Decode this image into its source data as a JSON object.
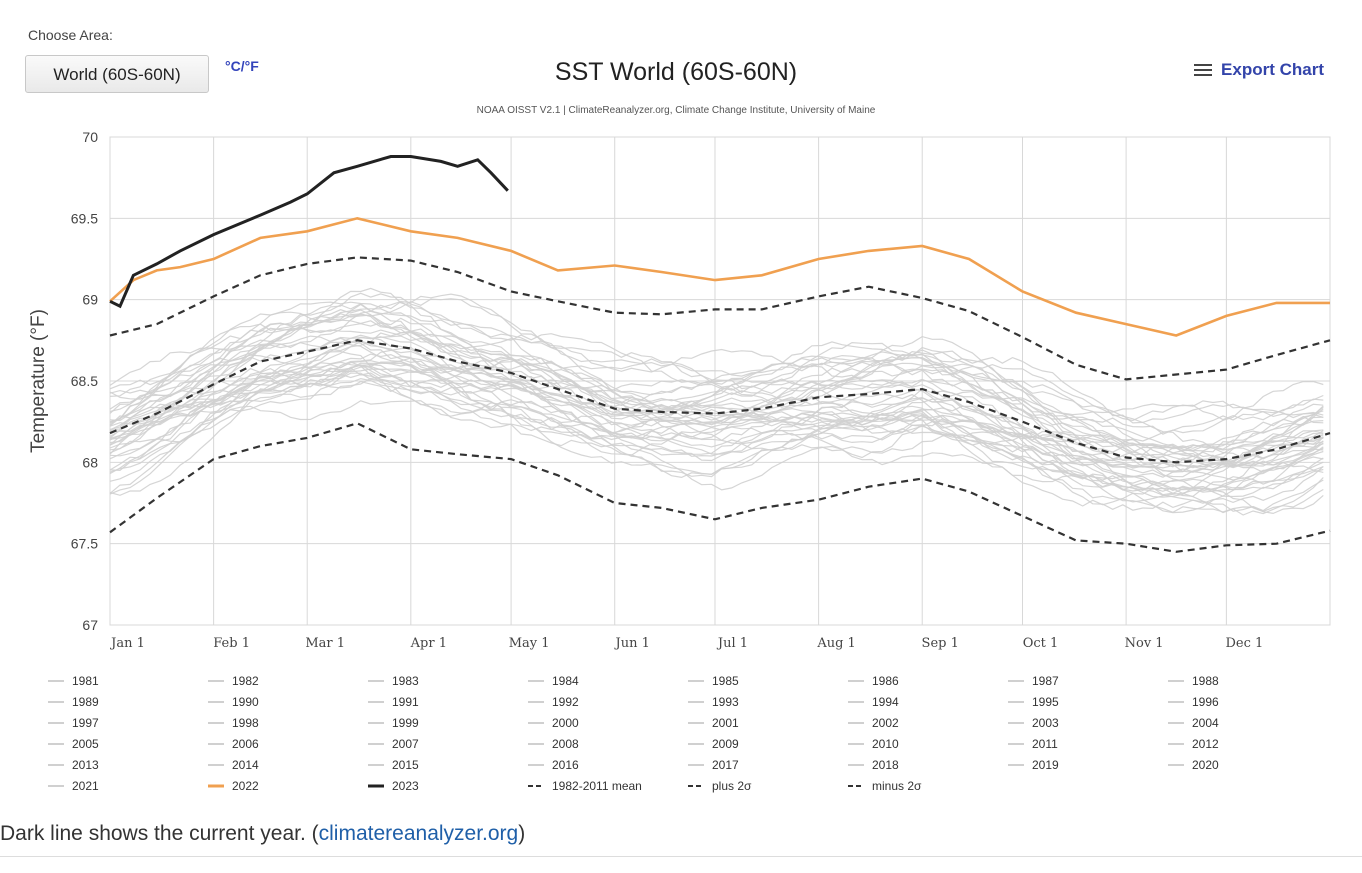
{
  "controls": {
    "choose_area_label": "Choose Area:",
    "area_selected": "World (60S-60N)",
    "unit_toggle": "°C/°F",
    "export_label": "Export Chart"
  },
  "caption": {
    "text_before": "Dark line shows the current year. (",
    "link_text": "climatereanalyzer.org",
    "text_after": ")"
  },
  "chart_data": {
    "type": "line",
    "title": "SST World (60S-60N)",
    "subtitle": "NOAA OISST V2.1 | ClimateReanalyzer.org, Climate Change Institute, University of Maine",
    "ylabel": "Temperature (°F)",
    "ylim": [
      67,
      70
    ],
    "yticks": [
      67,
      67.5,
      68,
      68.5,
      69,
      69.5,
      70
    ],
    "xlim": [
      1,
      366
    ],
    "xticks": [
      {
        "label": "Jan 1",
        "day": 1
      },
      {
        "label": "Feb 1",
        "day": 32
      },
      {
        "label": "Mar 1",
        "day": 60
      },
      {
        "label": "Apr 1",
        "day": 91
      },
      {
        "label": "May 1",
        "day": 121
      },
      {
        "label": "Jun 1",
        "day": 152
      },
      {
        "label": "Jul 1",
        "day": 182
      },
      {
        "label": "Aug 1",
        "day": 213
      },
      {
        "label": "Sep 1",
        "day": 244
      },
      {
        "label": "Oct 1",
        "day": 274
      },
      {
        "label": "Nov 1",
        "day": 305
      },
      {
        "label": "Dec 1",
        "day": 335
      }
    ],
    "grid": true,
    "legend_position": "bottom",
    "colors": {
      "past_years": "#d0d0d0",
      "y2022": "#f0a050",
      "y2023": "#222222",
      "stats": "#333333"
    },
    "background_years": [
      "1981",
      "1982",
      "1983",
      "1984",
      "1985",
      "1986",
      "1987",
      "1988",
      "1989",
      "1990",
      "1991",
      "1992",
      "1993",
      "1994",
      "1995",
      "1996",
      "1997",
      "1998",
      "1999",
      "2000",
      "2001",
      "2002",
      "2003",
      "2004",
      "2005",
      "2006",
      "2007",
      "2008",
      "2009",
      "2010",
      "2011",
      "2012",
      "2013",
      "2014",
      "2015",
      "2016",
      "2017",
      "2018",
      "2019",
      "2020",
      "2021"
    ],
    "highlight_series": [
      {
        "name": "1982-2011 mean",
        "style": "dashed",
        "x": [
          1,
          15,
          32,
          46,
          60,
          75,
          91,
          105,
          121,
          135,
          152,
          166,
          182,
          196,
          213,
          228,
          244,
          258,
          274,
          290,
          305,
          320,
          335,
          350,
          366
        ],
        "y": [
          68.18,
          68.3,
          68.48,
          68.62,
          68.68,
          68.75,
          68.7,
          68.62,
          68.55,
          68.45,
          68.33,
          68.31,
          68.3,
          68.33,
          68.4,
          68.42,
          68.45,
          68.37,
          68.25,
          68.12,
          68.03,
          68.0,
          68.02,
          68.08,
          68.18
        ]
      },
      {
        "name": "plus 2σ",
        "style": "dashed",
        "x": [
          1,
          15,
          32,
          46,
          60,
          75,
          91,
          105,
          121,
          135,
          152,
          166,
          182,
          196,
          213,
          228,
          244,
          258,
          274,
          290,
          305,
          320,
          335,
          350,
          366
        ],
        "y": [
          68.78,
          68.85,
          69.02,
          69.15,
          69.22,
          69.26,
          69.24,
          69.17,
          69.05,
          68.99,
          68.92,
          68.91,
          68.94,
          68.94,
          69.02,
          69.08,
          69.01,
          68.93,
          68.77,
          68.6,
          68.51,
          68.54,
          68.57,
          68.66,
          68.75
        ]
      },
      {
        "name": "minus 2σ",
        "style": "dashed",
        "x": [
          1,
          15,
          32,
          46,
          60,
          75,
          91,
          105,
          121,
          135,
          152,
          166,
          182,
          196,
          213,
          228,
          244,
          258,
          274,
          290,
          305,
          320,
          335,
          350,
          366
        ],
        "y": [
          67.57,
          67.78,
          68.02,
          68.1,
          68.15,
          68.24,
          68.08,
          68.05,
          68.02,
          67.92,
          67.75,
          67.72,
          67.65,
          67.72,
          67.77,
          67.85,
          67.9,
          67.82,
          67.67,
          67.52,
          67.5,
          67.45,
          67.49,
          67.5,
          67.58
        ]
      },
      {
        "name": "2022",
        "style": "orange",
        "x": [
          1,
          8,
          15,
          22,
          32,
          46,
          60,
          75,
          91,
          105,
          121,
          135,
          152,
          166,
          182,
          196,
          213,
          228,
          244,
          258,
          274,
          290,
          305,
          320,
          335,
          350,
          366
        ],
        "y": [
          68.99,
          69.12,
          69.18,
          69.2,
          69.25,
          69.38,
          69.42,
          69.5,
          69.42,
          69.38,
          69.3,
          69.18,
          69.21,
          69.17,
          69.12,
          69.15,
          69.25,
          69.3,
          69.33,
          69.25,
          69.05,
          68.92,
          68.85,
          68.78,
          68.9,
          68.98,
          68.98
        ]
      },
      {
        "name": "2023",
        "style": "dark",
        "x": [
          1,
          4,
          8,
          15,
          22,
          32,
          46,
          55,
          60,
          68,
          75,
          85,
          91,
          100,
          105,
          111,
          115,
          120
        ],
        "y": [
          68.99,
          68.96,
          69.15,
          69.22,
          69.3,
          69.4,
          69.52,
          69.6,
          69.65,
          69.78,
          69.82,
          69.88,
          69.88,
          69.85,
          69.82,
          69.86,
          69.78,
          69.67
        ]
      }
    ],
    "legend": [
      "1981",
      "1982",
      "1983",
      "1984",
      "1985",
      "1986",
      "1987",
      "1988",
      "1989",
      "1990",
      "1991",
      "1992",
      "1993",
      "1994",
      "1995",
      "1996",
      "1997",
      "1998",
      "1999",
      "2000",
      "2001",
      "2002",
      "2003",
      "2004",
      "2005",
      "2006",
      "2007",
      "2008",
      "2009",
      "2010",
      "2011",
      "2012",
      "2013",
      "2014",
      "2015",
      "2016",
      "2017",
      "2018",
      "2019",
      "2020",
      "2021",
      "2022",
      "2023",
      "1982-2011 mean",
      "plus 2σ",
      "minus 2σ"
    ]
  }
}
